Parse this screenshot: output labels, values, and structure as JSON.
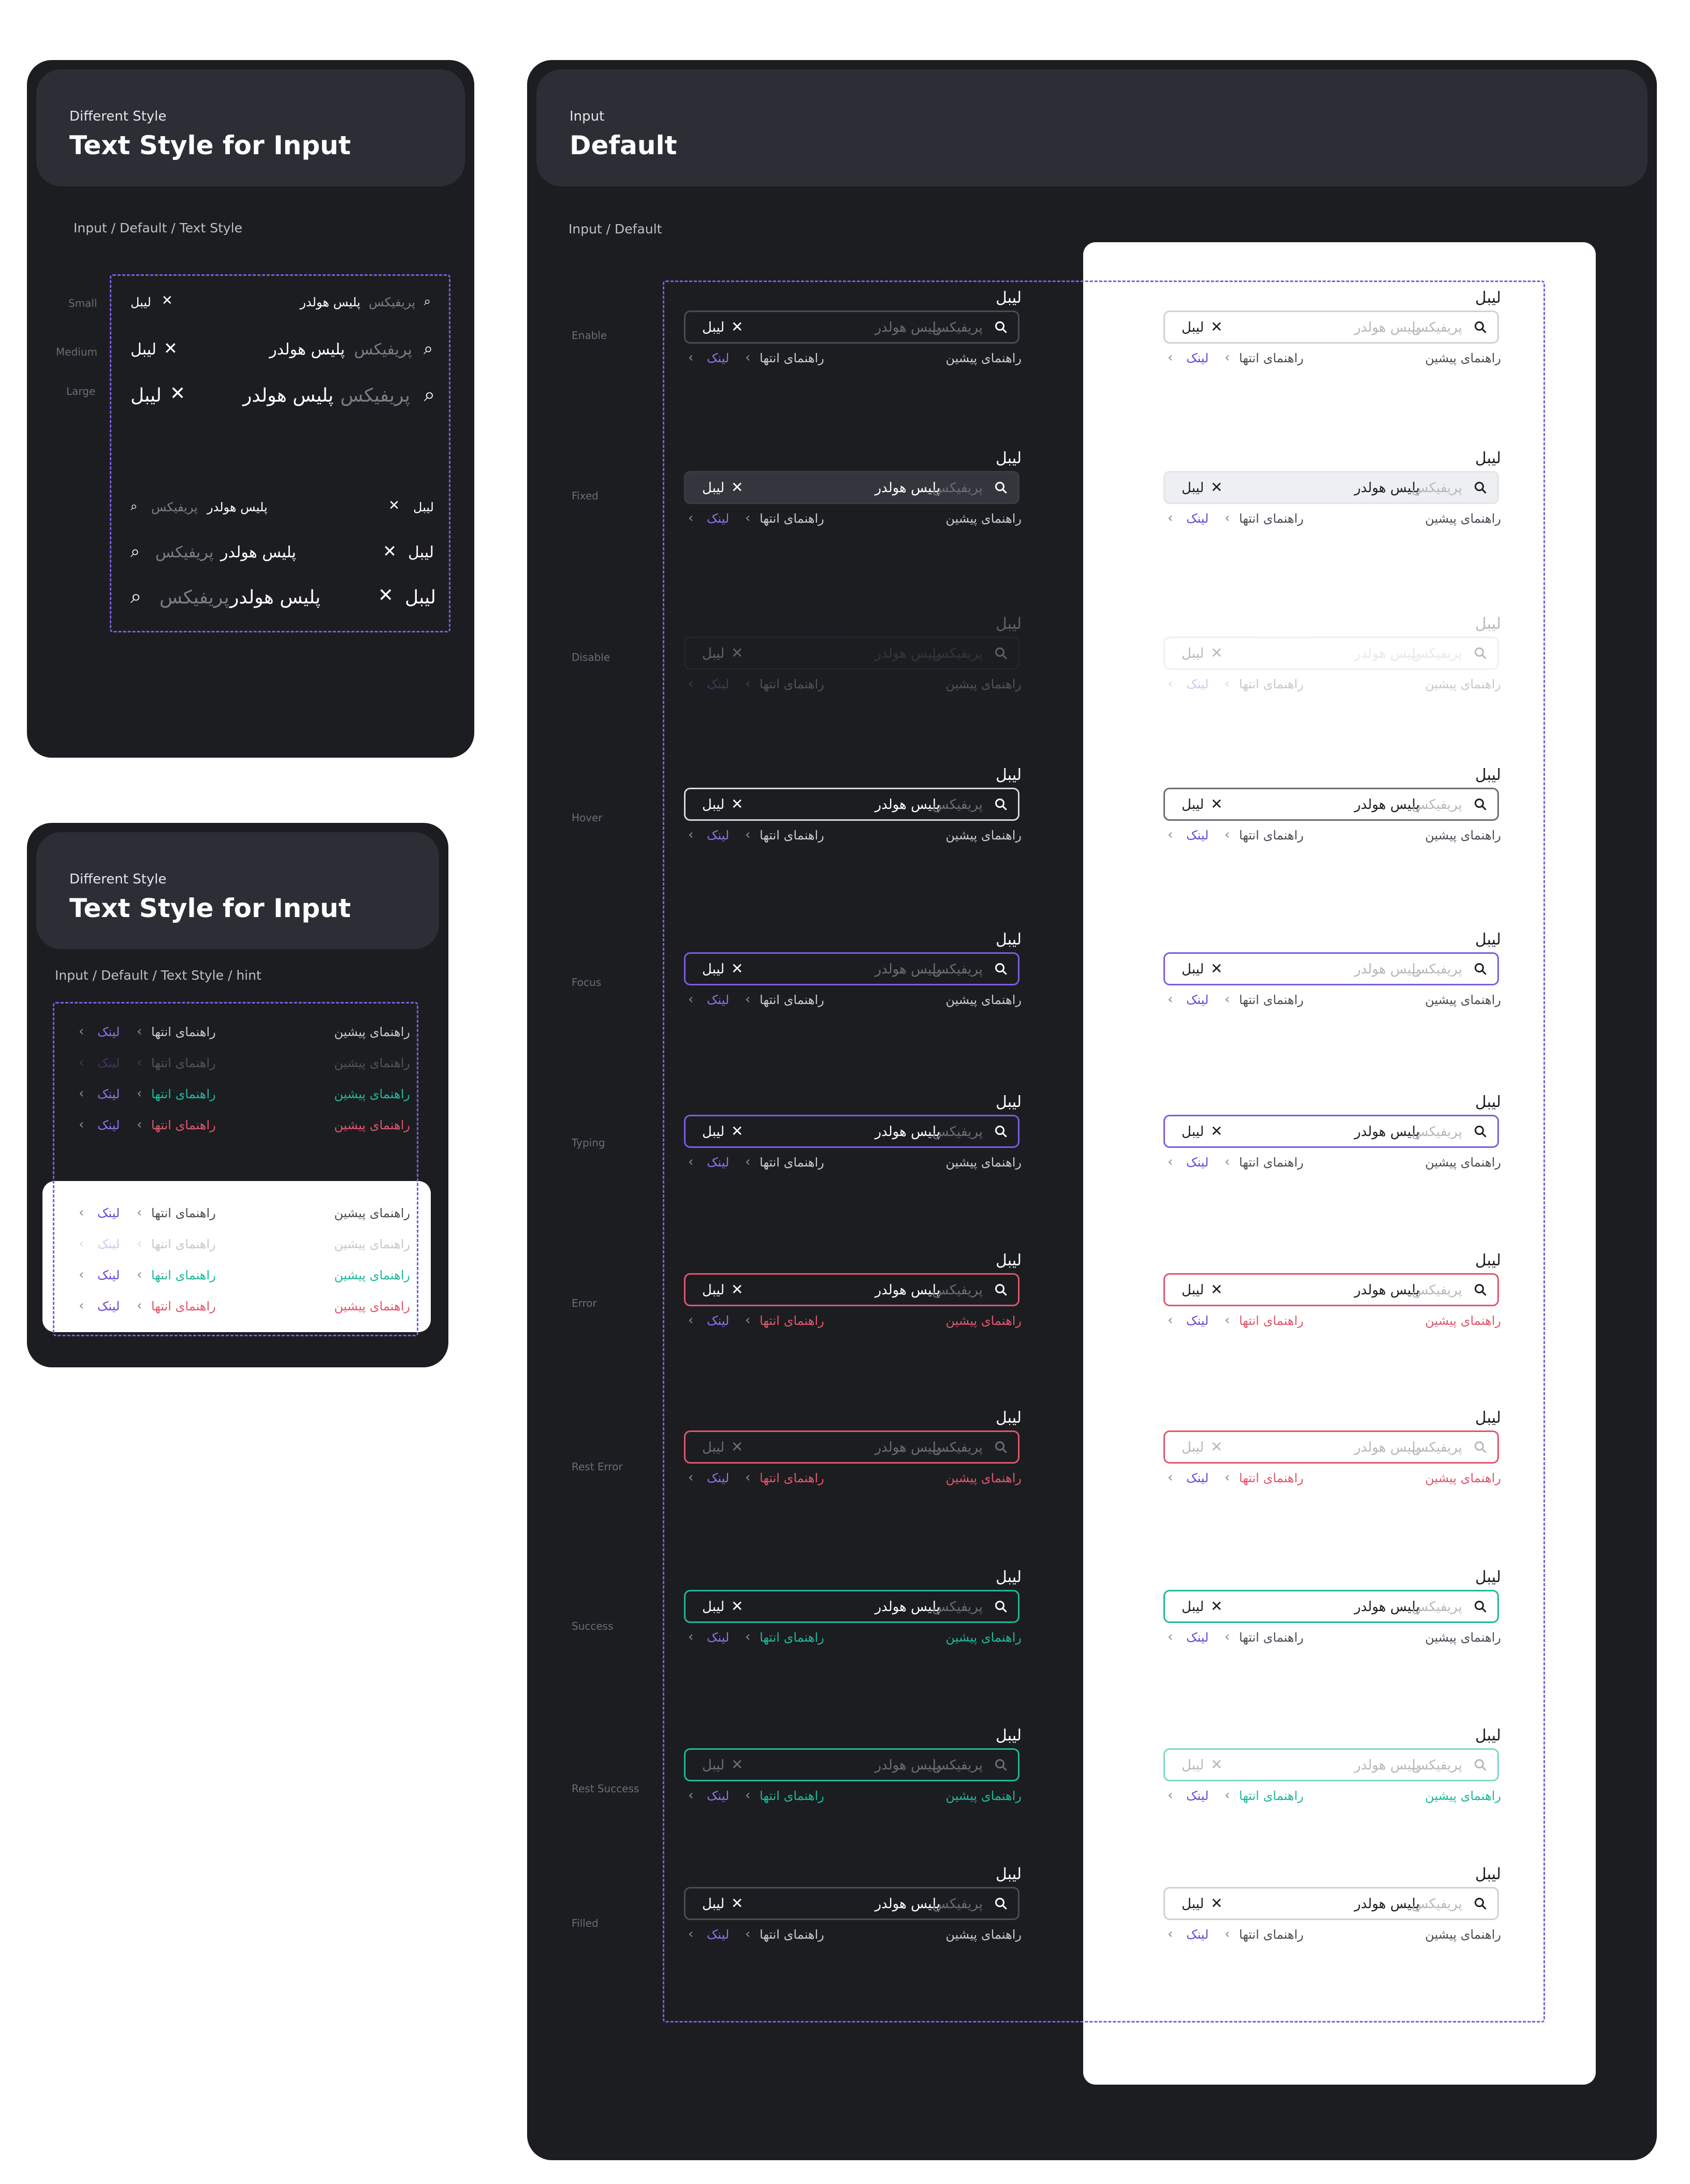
{
  "panel_sizes": {
    "subtitle": "Different Style",
    "title": "Text Style for Input",
    "breadcrumb": "Input / Default / Text Style",
    "size_labels": [
      "Small",
      "Medium",
      "Large"
    ]
  },
  "panel_hints": {
    "subtitle": "Different Style",
    "title": "Text Style for Input",
    "breadcrumb": "Input / Default / Text Style / hint"
  },
  "panel_default": {
    "subtitle": "Input",
    "title": "Default",
    "breadcrumb": "Input / Default",
    "states": [
      "Enable",
      "Fixed",
      "Disable",
      "Hover",
      "Focus",
      "Typing",
      "Error",
      "Rest Error",
      "Success",
      "Rest Success",
      "Filled"
    ]
  },
  "field": {
    "label": "لیبل",
    "placeholder": "پلیس هولدر",
    "prefix": "پریفیکس",
    "hint_start": "راهنمای پیشین",
    "hint_end": "راهنمای انتها",
    "link": "لینک",
    "clear_icon": "close-icon",
    "search_icon": "search-icon",
    "chevron_icon": "chevron-left-icon"
  },
  "colors": {
    "panel_bg": "#1c1d21",
    "header_bg": "#2c2e36",
    "accent_purple": "#7d5ce0",
    "success": "#1fb89a",
    "error": "#e0566b",
    "text_on_dark": "#ffffff",
    "muted": "#6b6d75"
  }
}
